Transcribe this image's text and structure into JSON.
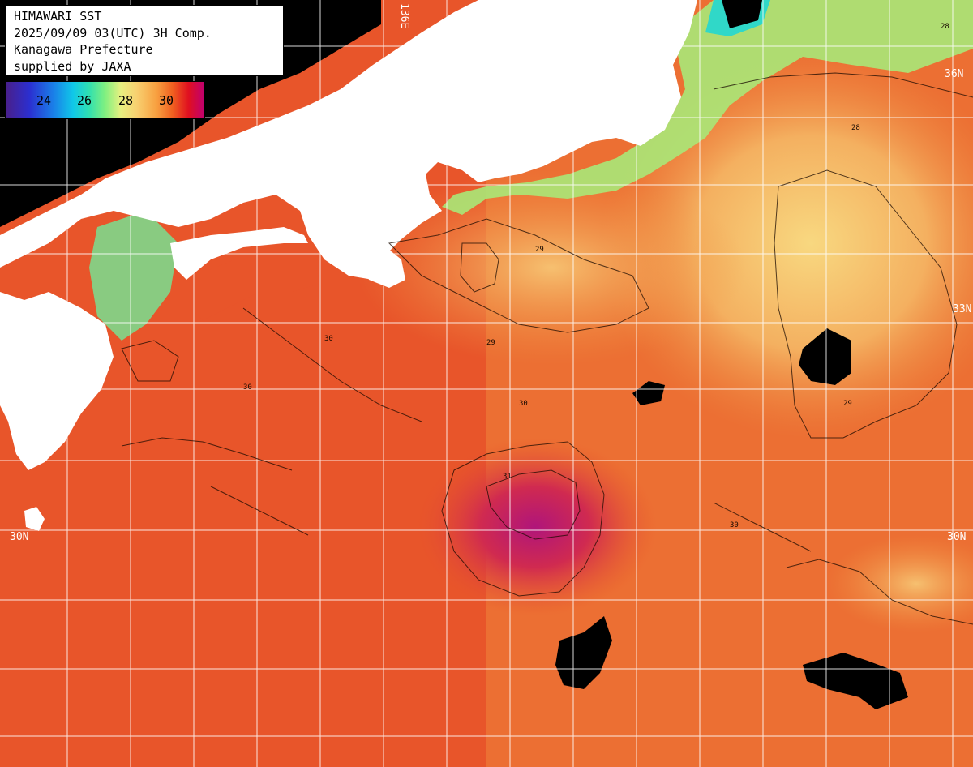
{
  "header": {
    "line1": "HIMAWARI SST",
    "line2": "2025/09/09 03(UTC) 3H Comp.",
    "line3": "Kanagawa Prefecture",
    "line4": "supplied by JAXA"
  },
  "legend": {
    "ticks": [
      "24",
      "26",
      "28",
      "30"
    ]
  },
  "grid_labels": {
    "lon_136": "136E",
    "lat_36": "36N",
    "lat_33": "33N",
    "lat_30_left": "30N",
    "lat_30_right": "30N"
  },
  "contour_labels": [
    "28",
    "29",
    "29",
    "30",
    "30",
    "31",
    "30",
    "29",
    "28",
    "30"
  ],
  "colors": {
    "land": "#ffffff",
    "no_data": "#000000",
    "warm_sea": "#e8552a",
    "hot_core": "#b0157a",
    "cool_shelf": "#8fe880",
    "mild_sea": "#f4b060",
    "grid": "#ffffff"
  }
}
